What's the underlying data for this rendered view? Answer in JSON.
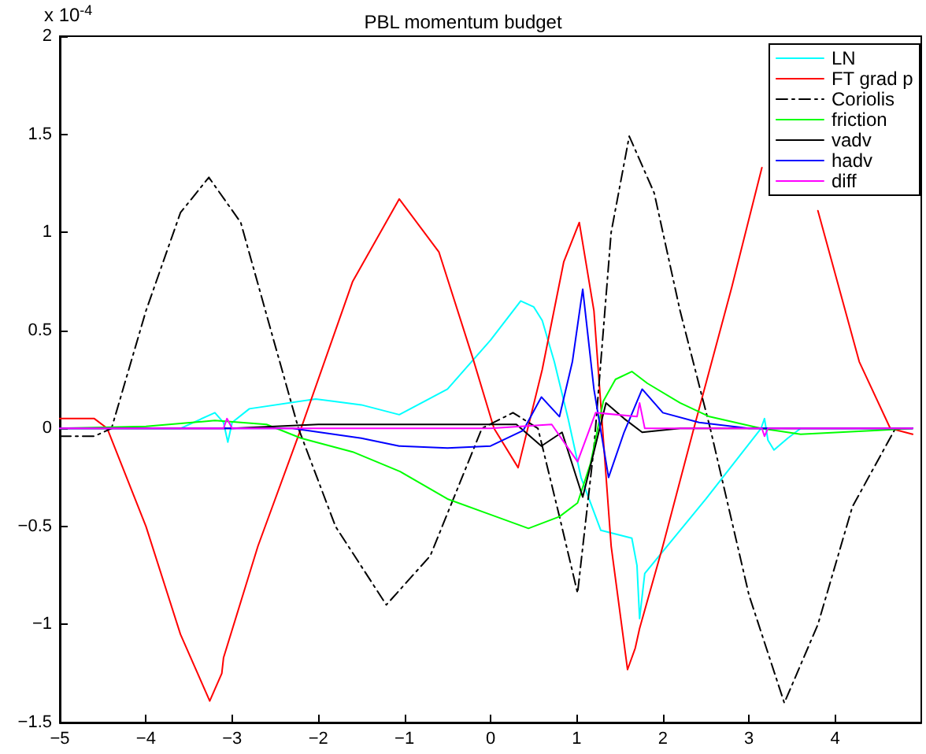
{
  "chart_data": {
    "type": "line",
    "title": "PBL momentum budget",
    "annotations": [
      "x 10$^{-4}$"
    ],
    "xlim": [
      -5,
      5
    ],
    "xticks": [
      -5,
      -4,
      -3,
      -2,
      -1,
      0,
      1,
      2,
      3,
      4
    ],
    "ylim": [
      -1.5,
      2
    ],
    "yticks": [
      -1.5,
      -1,
      -0.5,
      0,
      0.5,
      1,
      1.5,
      2
    ],
    "grid": false,
    "legend": "top right",
    "marker": "none",
    "series": [
      {
        "name": "LN",
        "color": "#00ffff",
        "x": [
          -5,
          -3.6,
          -3.2,
          -3.1,
          -3.05,
          -3.0,
          -2.8,
          -2.03,
          -1.5,
          -1.06,
          -0.5,
          0,
          0.35,
          0.5,
          0.6,
          0.74,
          0.9,
          1.05,
          1.28,
          1.64,
          1.7,
          1.73,
          1.79,
          2.5,
          3.14,
          3.18,
          3.22,
          3.29,
          3.45,
          3.6,
          4.9
        ],
        "values": [
          0,
          0,
          0.08,
          0.03,
          -0.07,
          0.03,
          0.1,
          0.15,
          0.12,
          0.07,
          0.2,
          0.45,
          0.65,
          0.62,
          0.55,
          0.34,
          0.05,
          -0.25,
          -0.52,
          -0.56,
          -0.7,
          -0.97,
          -0.74,
          -0.36,
          0,
          0.05,
          -0.06,
          -0.11,
          -0.05,
          0,
          0
        ]
      },
      {
        "name": "FT grad p",
        "color": "#ff0000",
        "x": [
          -5,
          -4.6,
          -4.45,
          -4.0,
          -3.6,
          -3.26,
          -3.12,
          -3.1,
          -2.7,
          -2.2,
          -1.6,
          -1.06,
          -0.6,
          -0.2,
          0.04,
          0.32,
          0.6,
          0.85,
          1.03,
          1.2,
          1.4,
          1.59,
          1.68,
          1.73,
          2.0,
          2.36,
          2.8,
          3.15,
          null,
          3.8,
          4.28,
          4.64,
          4.9
        ],
        "values": [
          0.05,
          0.05,
          0,
          -0.5,
          -1.05,
          -1.39,
          -1.25,
          -1.17,
          -0.6,
          0,
          0.75,
          1.17,
          0.9,
          0.35,
          0,
          -0.2,
          0.3,
          0.85,
          1.05,
          0.6,
          -0.6,
          -1.23,
          -1.12,
          -1.02,
          -0.6,
          0,
          0.72,
          1.33,
          null,
          1.11,
          0.34,
          0,
          -0.03
        ]
      },
      {
        "name": "Coriolis",
        "color": "#000000",
        "line_style": "dashed",
        "x": [
          -5,
          -4.6,
          -4.4,
          -4.0,
          -3.6,
          -3.27,
          -2.9,
          -2.55,
          -2.23,
          -1.8,
          -1.21,
          -0.7,
          -0.1,
          0.26,
          0.55,
          0.8,
          1.01,
          1.2,
          1.4,
          1.61,
          1.9,
          2.2,
          2.55,
          3.0,
          3.41,
          3.8,
          4.2,
          4.7
        ],
        "values": [
          -0.04,
          -0.04,
          0,
          0.6,
          1.1,
          1.28,
          1.05,
          0.5,
          0,
          -0.5,
          -0.9,
          -0.65,
          0,
          0.08,
          0,
          -0.45,
          -0.84,
          -0.1,
          1.0,
          1.49,
          1.2,
          0.6,
          0,
          -0.85,
          -1.4,
          -1.0,
          -0.4,
          0
        ]
      },
      {
        "name": "friction",
        "color": "#00ff00",
        "x": [
          -5,
          -4.0,
          -3.2,
          -2.6,
          -2.2,
          -1.6,
          -1.05,
          -0.5,
          0,
          0.44,
          0.8,
          1.01,
          1.16,
          1.31,
          1.45,
          1.64,
          1.82,
          2.2,
          2.54,
          3.14,
          3.6,
          4.5,
          4.9
        ],
        "values": [
          0,
          0.01,
          0.04,
          0.02,
          -0.05,
          -0.12,
          -0.22,
          -0.36,
          -0.44,
          -0.51,
          -0.45,
          -0.38,
          -0.18,
          0.14,
          0.25,
          0.29,
          0.23,
          0.13,
          0.06,
          0,
          -0.03,
          -0.01,
          0
        ]
      },
      {
        "name": "vadv",
        "color": "#000000",
        "x": [
          -5,
          -3,
          -2,
          0,
          0.3,
          0.59,
          0.83,
          1.07,
          1.34,
          1.55,
          1.76,
          2.2,
          4.9
        ],
        "values": [
          0,
          0,
          0.02,
          0.02,
          0.02,
          -0.09,
          -0.02,
          -0.35,
          0.13,
          0.05,
          -0.02,
          0,
          0
        ]
      },
      {
        "name": "hadv",
        "color": "#0000ff",
        "x": [
          -5,
          -2.3,
          -1.5,
          -1.06,
          -0.5,
          0,
          0.38,
          0.59,
          0.8,
          0.95,
          1.07,
          1.2,
          1.37,
          1.55,
          1.76,
          2.0,
          2.42,
          3.0,
          4.9
        ],
        "values": [
          0,
          0,
          -0.05,
          -0.09,
          -0.1,
          -0.09,
          -0.01,
          0.16,
          0.06,
          0.34,
          0.71,
          0.2,
          -0.25,
          -0.02,
          0.2,
          0.08,
          0.03,
          0,
          0
        ]
      },
      {
        "name": "diff",
        "color": "#ff00ff",
        "x": [
          -5,
          -3.1,
          -3.06,
          -3.0,
          0,
          0.71,
          1.01,
          1.22,
          1.7,
          1.73,
          1.79,
          3.15,
          3.18,
          3.22,
          4.9
        ],
        "values": [
          0,
          0,
          0.05,
          0,
          0,
          0.02,
          -0.17,
          0.08,
          0.06,
          0.13,
          0,
          0,
          -0.04,
          0,
          0
        ]
      }
    ]
  }
}
